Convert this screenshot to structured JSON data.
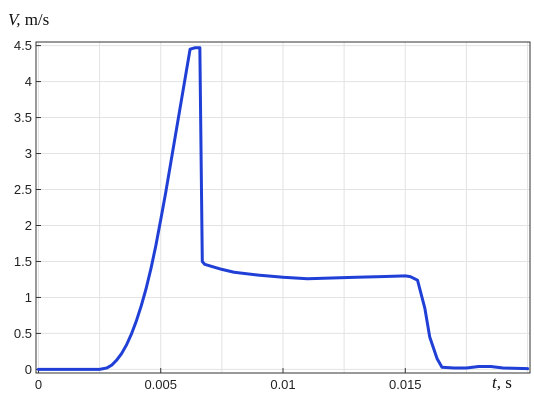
{
  "chart_data": {
    "type": "line",
    "ylabel_var": "V,",
    "ylabel_unit": " m/s",
    "xlabel_var": "t,",
    "xlabel_unit": " s",
    "xlim": [
      -0.0001,
      0.0201
    ],
    "ylim": [
      -0.05,
      4.55
    ],
    "xticks": [
      0,
      0.005,
      0.01,
      0.015
    ],
    "xtick_labels": [
      "0",
      "0.005",
      "0.01",
      "0.015"
    ],
    "yticks": [
      0,
      0.5,
      1,
      1.5,
      2,
      2.5,
      3,
      3.5,
      4,
      4.5
    ],
    "ytick_labels": [
      "0",
      "0.5",
      "1",
      "1.5",
      "2",
      "2.5",
      "3",
      "3.5",
      "4",
      "4.5"
    ],
    "grid": true,
    "line_color": "#1f3fd6",
    "series": [
      {
        "x": [
          0,
          0.0025,
          0.0028,
          0.003,
          0.0032,
          0.0034,
          0.0036,
          0.0038,
          0.004,
          0.0042,
          0.0044,
          0.0046,
          0.0048,
          0.005,
          0.0052,
          0.0054,
          0.0056,
          0.0058,
          0.006,
          0.0062,
          0.0064,
          0.0066,
          0.0067,
          0.0068,
          0.007,
          0.0075,
          0.008,
          0.009,
          0.01,
          0.011,
          0.012,
          0.013,
          0.014,
          0.015,
          0.0152,
          0.0155,
          0.0158,
          0.016,
          0.0163,
          0.0165,
          0.017,
          0.0175,
          0.018,
          0.0185,
          0.019,
          0.02
        ],
        "y": [
          0,
          0.0,
          0.02,
          0.06,
          0.13,
          0.22,
          0.34,
          0.49,
          0.67,
          0.88,
          1.12,
          1.4,
          1.72,
          2.08,
          2.45,
          2.85,
          3.25,
          3.65,
          4.05,
          4.45,
          4.47,
          4.47,
          1.5,
          1.46,
          1.44,
          1.39,
          1.35,
          1.31,
          1.28,
          1.26,
          1.27,
          1.28,
          1.29,
          1.3,
          1.29,
          1.24,
          0.85,
          0.45,
          0.15,
          0.03,
          0.02,
          0.02,
          0.04,
          0.04,
          0.02,
          0.01
        ]
      }
    ]
  }
}
